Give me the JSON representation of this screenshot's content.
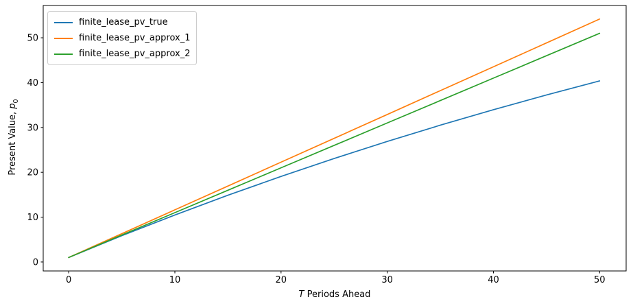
{
  "figure": {
    "background": "#ffffff",
    "axis_color": "#000000",
    "text_color": "#000000"
  },
  "chart_data": {
    "type": "line",
    "title": "",
    "xlabel": "T Periods Ahead",
    "ylabel": "Present Value, p0",
    "xlabel_parts": {
      "italic": "T",
      "rest": " Periods Ahead"
    },
    "ylabel_parts": {
      "rest": "Present Value, ",
      "italic": "p",
      "sub": "0"
    },
    "xlim": [
      -2.4,
      52.5
    ],
    "ylim": [
      -2.0,
      57.2
    ],
    "xticks": [
      0,
      10,
      20,
      30,
      40,
      50
    ],
    "yticks": [
      0,
      10,
      20,
      30,
      40,
      50
    ],
    "grid": false,
    "legend_position": "upper left",
    "x": [
      0,
      5,
      10,
      15,
      20,
      25,
      30,
      35,
      40,
      45,
      50
    ],
    "series": [
      {
        "name": "finite_lease_pv_true",
        "color": "#1f77b4",
        "values": [
          1.0,
          5.86,
          10.48,
          14.89,
          19.08,
          23.08,
          26.88,
          30.51,
          33.96,
          37.25,
          40.38
        ]
      },
      {
        "name": "finite_lease_pv_approx_1",
        "color": "#ff7f0e",
        "values": [
          1.0,
          6.31,
          11.63,
          16.94,
          22.26,
          27.57,
          32.89,
          38.21,
          43.53,
          48.85,
          54.18
        ]
      },
      {
        "name": "finite_lease_pv_approx_2",
        "color": "#2ca02c",
        "values": [
          1.0,
          6.0,
          11.0,
          16.0,
          21.0,
          26.0,
          31.0,
          36.0,
          41.0,
          46.0,
          51.0
        ]
      }
    ]
  }
}
